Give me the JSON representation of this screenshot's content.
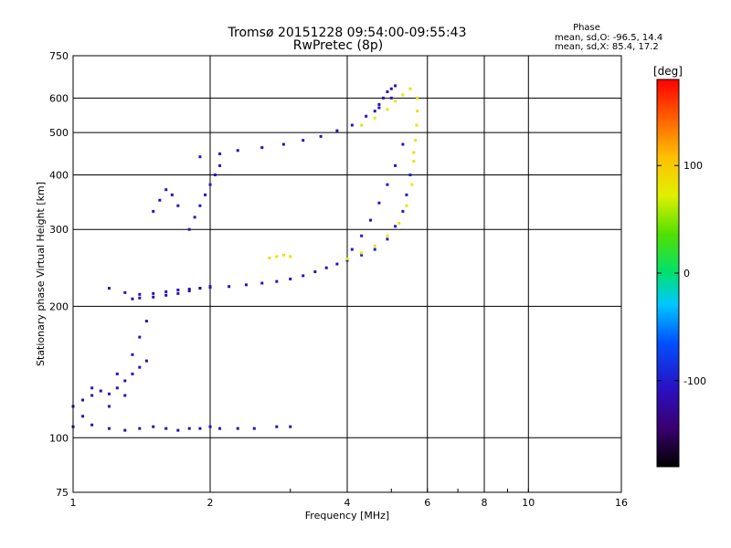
{
  "chart_data": {
    "type": "scatter",
    "title": "Tromsø 20151228 09:54:00-09:55:43",
    "subtitle": "RwPretec (8p)",
    "xlabel": "Frequency [MHz]",
    "ylabel": "Stationary phase Virtual Height [km]",
    "x_scale": "log",
    "y_scale": "log",
    "xlim": [
      1,
      16
    ],
    "ylim": [
      75,
      750
    ],
    "x_ticks": [
      1,
      2,
      4,
      6,
      8,
      10,
      16
    ],
    "x_tick_labels": [
      "1",
      "2",
      "4",
      "6",
      "8",
      "10",
      "16"
    ],
    "y_ticks": [
      75,
      100,
      200,
      300,
      400,
      500,
      600,
      750
    ],
    "y_tick_labels": [
      "75",
      "100",
      "200",
      "300",
      "400",
      "500",
      "600",
      "750"
    ],
    "grid": true,
    "stats": {
      "heading": "Phase",
      "o_line": "mean, sd,O: -96.5, 14.4",
      "x_line": "mean, sd,X:  85.4, 17.2"
    },
    "colorbar": {
      "label": "[deg]",
      "range": [
        -180,
        180
      ],
      "ticks": [
        100,
        0,
        -100
      ],
      "tick_labels": [
        "100",
        "0",
        "-100"
      ]
    },
    "series": [
      {
        "name": "",
        "traces": [
          {
            "x": [
              1.0,
              1.1,
              1.2,
              1.3,
              1.4,
              1.5,
              1.6,
              1.7,
              1.8,
              1.9,
              2.0,
              2.1,
              2.3,
              2.5,
              2.8,
              3.0
            ],
            "y": [
              106,
              107,
              105,
              104,
              105,
              106,
              105,
              104,
              105,
              105,
              106,
              105,
              105,
              105,
              106,
              106
            ],
            "phase": -120
          },
          {
            "x": [
              1.0,
              1.05,
              1.1,
              1.15,
              1.2,
              1.25,
              1.3,
              1.35,
              1.4,
              1.45
            ],
            "y": [
              118,
              122,
              125,
              128,
              126,
              130,
              135,
              140,
              145,
              150
            ],
            "phase": -115
          },
          {
            "x": [
              1.05,
              1.1,
              1.2,
              1.25,
              1.3,
              1.35,
              1.4,
              1.45
            ],
            "y": [
              112,
              130,
              118,
              140,
              125,
              155,
              170,
              185
            ],
            "phase": -110
          },
          {
            "x": [
              1.2,
              1.3,
              1.4,
              1.5,
              1.6,
              1.7,
              1.8,
              1.9,
              2.0,
              2.2,
              2.4,
              2.6,
              2.8,
              3.0,
              3.2,
              3.4,
              3.6,
              3.8,
              4.0
            ],
            "y": [
              220,
              215,
              213,
              214,
              216,
              218,
              219,
              220,
              221,
              222,
              224,
              226,
              228,
              231,
              235,
              240,
              245,
              250,
              255
            ],
            "phase": -110
          },
          {
            "x": [
              1.35,
              1.4,
              1.5,
              1.6,
              1.7,
              1.8,
              1.9,
              2.0
            ],
            "y": [
              208,
              209,
              210,
              212,
              214,
              217,
              220,
              222
            ],
            "phase": -120
          },
          {
            "x": [
              4.0,
              4.3,
              4.6,
              4.9,
              5.1,
              5.3,
              5.4,
              5.5
            ],
            "y": [
              255,
              262,
              270,
              285,
              305,
              330,
              360,
              400
            ],
            "phase": -100
          },
          {
            "x": [
              1.9,
              2.1,
              2.3,
              2.6,
              2.9,
              3.2,
              3.5,
              3.8,
              4.1,
              4.4,
              4.7,
              5.0
            ],
            "y": [
              440,
              447,
              455,
              462,
              470,
              480,
              490,
              505,
              520,
              545,
              570,
              600
            ],
            "phase": -110
          },
          {
            "x": [
              4.6,
              4.7,
              4.8,
              4.9,
              5.0,
              5.1
            ],
            "y": [
              560,
              580,
              600,
              620,
              630,
              640
            ],
            "phase": -115
          },
          {
            "x": [
              4.1,
              4.3,
              4.5,
              4.7,
              4.9,
              5.1,
              5.3
            ],
            "y": [
              270,
              290,
              315,
              345,
              380,
              420,
              470
            ],
            "phase": -105
          },
          {
            "x": [
              4.0,
              4.3,
              4.6,
              4.9,
              5.2,
              5.4,
              5.55,
              5.6
            ],
            "y": [
              257,
              265,
              275,
              290,
              310,
              340,
              380,
              430
            ],
            "phase": 80
          },
          {
            "x": [
              5.6,
              5.65,
              5.68,
              5.7,
              5.7
            ],
            "y": [
              450,
              480,
              520,
              560,
              600
            ],
            "phase": 85
          },
          {
            "x": [
              4.3,
              4.6,
              4.9,
              5.1,
              5.3,
              5.5
            ],
            "y": [
              520,
              540,
              565,
              590,
              610,
              630
            ],
            "phase": 80
          },
          {
            "x": [
              1.5,
              1.55,
              1.6,
              1.65,
              1.7
            ],
            "y": [
              330,
              350,
              370,
              360,
              340
            ],
            "phase": -110
          },
          {
            "x": [
              1.8,
              1.85,
              1.9,
              1.95,
              2.0,
              2.05,
              2.1
            ],
            "y": [
              300,
              320,
              340,
              360,
              380,
              400,
              420
            ],
            "phase": -105
          },
          {
            "x": [
              2.7,
              2.8,
              2.9,
              3.0
            ],
            "y": [
              258,
              260,
              262,
              260
            ],
            "phase": 85
          }
        ]
      }
    ]
  }
}
